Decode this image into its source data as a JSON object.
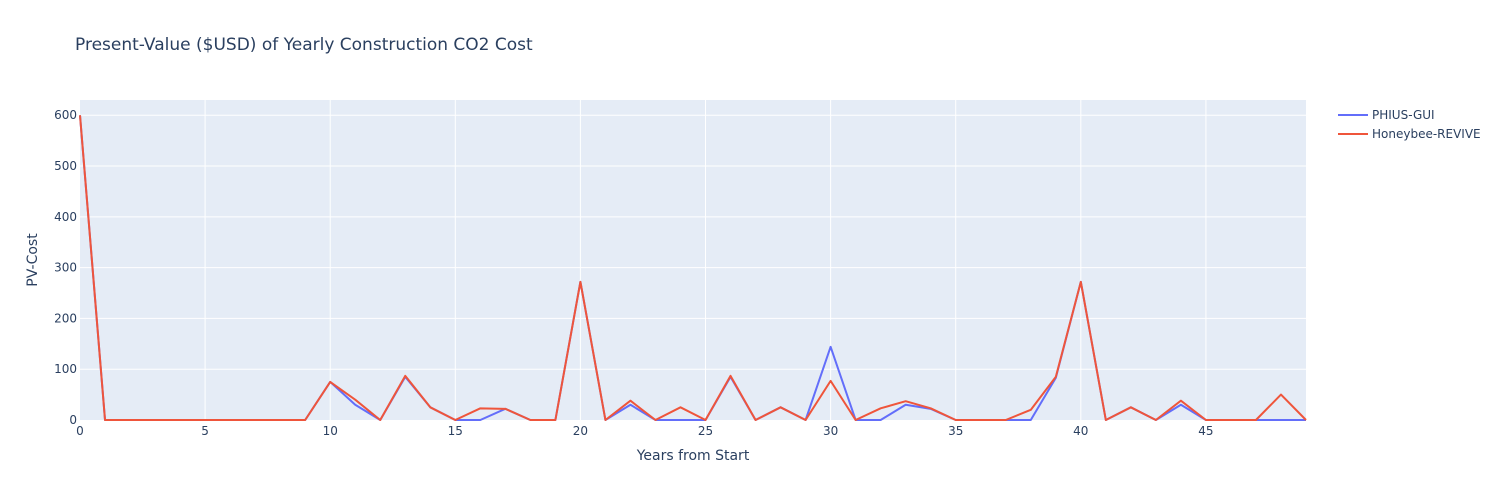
{
  "chart_data": {
    "type": "line",
    "title": "Present-Value ($USD) of Yearly Construction CO2 Cost",
    "xlabel": "Years from Start",
    "ylabel": "PV-Cost",
    "xlim": [
      0,
      49
    ],
    "ylim": [
      0,
      630
    ],
    "xticks": [
      0,
      5,
      10,
      15,
      20,
      25,
      30,
      35,
      40,
      45
    ],
    "yticks": [
      0,
      100,
      200,
      300,
      400,
      500,
      600
    ],
    "grid": true,
    "legend_position": "top-right",
    "x": [
      0,
      1,
      2,
      3,
      4,
      5,
      6,
      7,
      8,
      9,
      10,
      11,
      12,
      13,
      14,
      15,
      16,
      17,
      18,
      19,
      20,
      21,
      22,
      23,
      24,
      25,
      26,
      27,
      28,
      29,
      30,
      31,
      32,
      33,
      34,
      35,
      36,
      37,
      38,
      39,
      40,
      41,
      42,
      43,
      44,
      45,
      46,
      47,
      48,
      49
    ],
    "series": [
      {
        "name": "PHIUS-GUI",
        "color": "#636efa",
        "values": [
          600,
          0,
          0,
          0,
          0,
          0,
          0,
          0,
          0,
          0,
          75,
          30,
          0,
          85,
          25,
          0,
          0,
          22,
          0,
          0,
          272,
          0,
          30,
          0,
          0,
          0,
          85,
          0,
          25,
          0,
          144,
          0,
          0,
          30,
          22,
          0,
          0,
          0,
          0,
          83,
          272,
          0,
          25,
          0,
          30,
          0,
          0,
          0,
          0,
          0
        ]
      },
      {
        "name": "Honeybee-REVIVE",
        "color": "#ef553b",
        "values": [
          600,
          0,
          0,
          0,
          0,
          0,
          0,
          0,
          0,
          0,
          75,
          40,
          0,
          87,
          25,
          0,
          23,
          22,
          0,
          0,
          272,
          0,
          38,
          0,
          25,
          0,
          87,
          0,
          25,
          0,
          77,
          0,
          23,
          37,
          23,
          0,
          0,
          0,
          20,
          85,
          272,
          0,
          25,
          0,
          38,
          0,
          0,
          0,
          50,
          0
        ]
      }
    ]
  }
}
